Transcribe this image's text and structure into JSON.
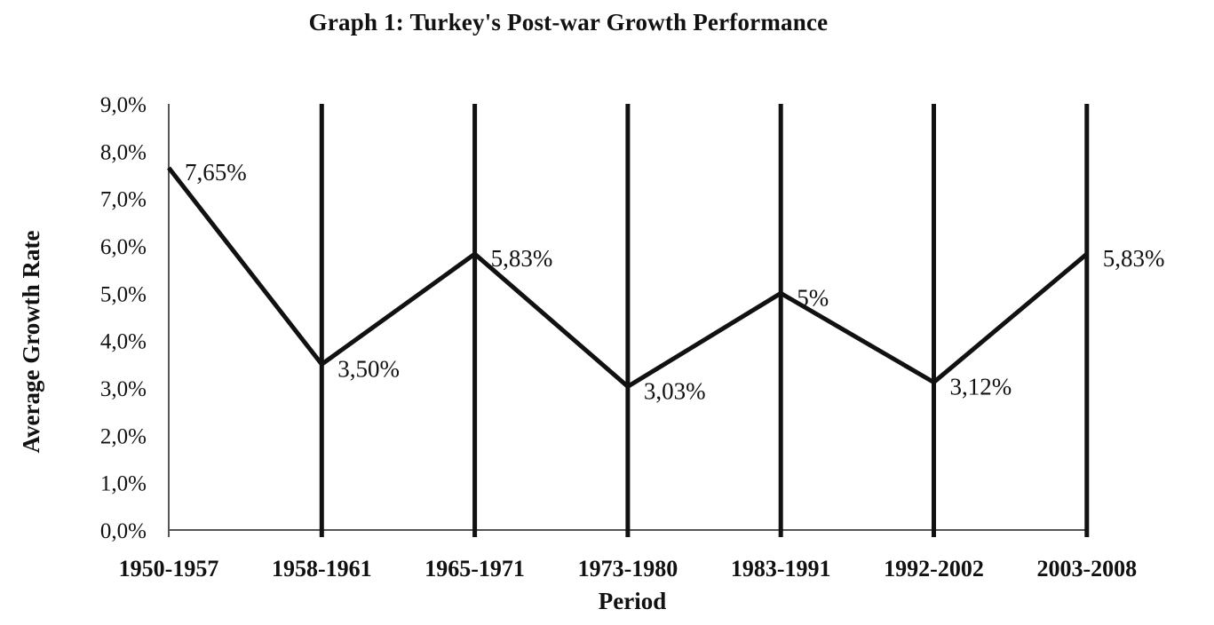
{
  "chart_data": {
    "type": "line",
    "title": "Graph 1: Turkey's Post-war Growth Performance",
    "xlabel": "Period",
    "ylabel": "Average Growth Rate",
    "categories": [
      "1950-1957",
      "1958-1961",
      "1965-1971",
      "1973-1980",
      "1983-1991",
      "1992-2002",
      "2003-2008"
    ],
    "values": [
      7.65,
      3.5,
      5.83,
      3.03,
      5.0,
      3.12,
      5.83
    ],
    "data_labels": [
      "7,65%",
      "3,50%",
      "5,83%",
      "3,03%",
      "5%",
      "3,12%",
      "5,83%"
    ],
    "ylim": [
      0,
      9
    ],
    "yticks": [
      "0,0%",
      "1,0%",
      "2,0%",
      "3,0%",
      "4,0%",
      "5,0%",
      "6,0%",
      "7,0%",
      "8,0%",
      "9,0%"
    ],
    "grid": "vertical lines at periods",
    "legend": "none",
    "line_color": "#111111"
  }
}
